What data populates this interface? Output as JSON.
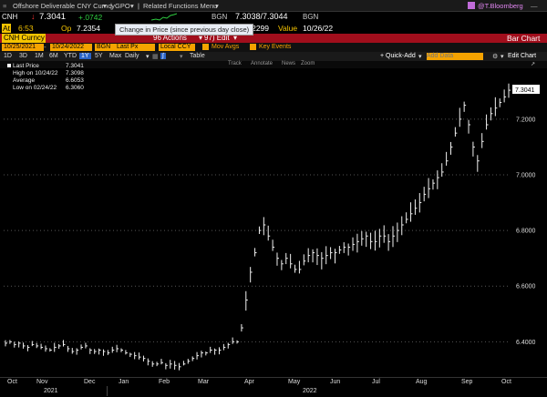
{
  "topbar": {
    "title": "Offshore Deliverable CNY Curncy",
    "gpo": "GPO",
    "related": "Related Functions Menu",
    "user": "@T.Bloomberg"
  },
  "quote": {
    "ticker": "CNH",
    "last": "7.3041",
    "change": "+.0742",
    "source": "BGN",
    "bid_ask": "7.3038/7.3044",
    "source2": "BGN",
    "at_label": "At",
    "at_time": "6:53",
    "op_label": "Op",
    "op_value": "7.2354",
    "close_label": "se",
    "close_value": "7.2299",
    "value_label": "Value",
    "value_date": "10/26/22"
  },
  "tooltip": "Change in Price (since previous day close)",
  "redbar": {
    "security": "CNH Curncy",
    "actions": "96 Actions",
    "edit": "97) Edit",
    "right": "Bar Chart"
  },
  "params": {
    "start": "10/25/2021",
    "end": "10/24/2022",
    "source": "BGN",
    "field": "Last Px",
    "ccy": "Local CCY",
    "mov_avgs": "Mov Avgs",
    "key_events": "Key Events"
  },
  "toolbar": {
    "periods": [
      "1D",
      "3D",
      "1M",
      "6M",
      "YTD",
      "1Y",
      "5Y",
      "Max"
    ],
    "active_period": "1Y",
    "freq": "Daily",
    "table": "Table",
    "quick_add": "+ Quick-Add",
    "add_data": "Add Data",
    "edit_chart": "Edit Chart"
  },
  "chartbar": {
    "track": "Track",
    "annotate": "Annotate",
    "news": "News",
    "zoom": "Zoom"
  },
  "legend": {
    "last_label": "Last Price",
    "last_value": "7.3041",
    "high_label": "High on 10/24/22",
    "high_value": "7.3098",
    "avg_label": "Average",
    "avg_value": "6.6053",
    "low_label": "Low on 02/24/22",
    "low_value": "6.3060"
  },
  "chart_data": {
    "type": "bar",
    "title": "",
    "xlabel": "",
    "ylabel": "",
    "ylim": [
      6.28,
      7.36
    ],
    "yticks": [
      "7.2000",
      "7.0000",
      "6.8000",
      "6.6000",
      "6.4000"
    ],
    "yticks_values": [
      7.2,
      7.0,
      6.8,
      6.6,
      6.4
    ],
    "last_price_label": "7.3041",
    "months": [
      "Oct",
      "Nov",
      "Dec",
      "Jan",
      "Feb",
      "Mar",
      "Apr",
      "May",
      "Jun",
      "Jul",
      "Aug",
      "Sep",
      "Oct"
    ],
    "years": [
      "2021",
      "2022"
    ],
    "series": [
      {
        "values": [
          6.395,
          6.4,
          6.39,
          6.395,
          6.385,
          6.38,
          6.39,
          6.385,
          6.38,
          6.375,
          6.37,
          6.38,
          6.385,
          6.39,
          6.375,
          6.365,
          6.37,
          6.38,
          6.385,
          6.37,
          6.365,
          6.37,
          6.365,
          6.36,
          6.37,
          6.375,
          6.37,
          6.36,
          6.355,
          6.35,
          6.345,
          6.34,
          6.33,
          6.32,
          6.32,
          6.325,
          6.315,
          6.32,
          6.315,
          6.31,
          6.32,
          6.33,
          6.34,
          6.35,
          6.36,
          6.36,
          6.37,
          6.37,
          6.37,
          6.38,
          6.39,
          6.4,
          6.4,
          6.45,
          6.55,
          6.65,
          6.72,
          6.8,
          6.82,
          6.78,
          6.74,
          6.7,
          6.68,
          6.7,
          6.68,
          6.66,
          6.66,
          6.69,
          6.71,
          6.72,
          6.71,
          6.7,
          6.71,
          6.72,
          6.72,
          6.73,
          6.74,
          6.74,
          6.75,
          6.76,
          6.77,
          6.78,
          6.76,
          6.76,
          6.78,
          6.78,
          6.76,
          6.78,
          6.8,
          6.82,
          6.84,
          6.86,
          6.88,
          6.9,
          6.93,
          6.95,
          6.97,
          6.99,
          7.01,
          7.05,
          7.1,
          7.15,
          7.2,
          7.25,
          7.18,
          7.1,
          7.05,
          7.12,
          7.18,
          7.22,
          7.24,
          7.26,
          7.28,
          7.3041
        ]
      }
    ]
  }
}
